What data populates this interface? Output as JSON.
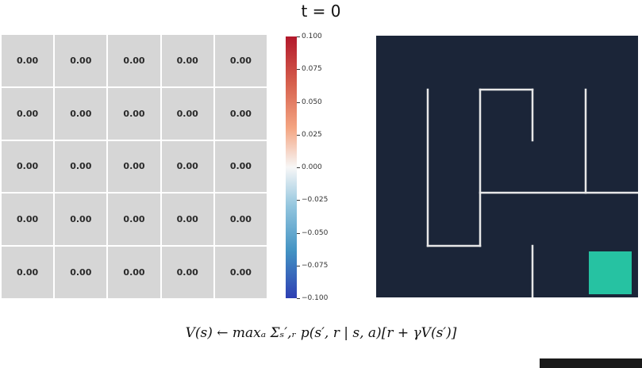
{
  "title": "t = 0",
  "grid": {
    "rows": [
      [
        "0.00",
        "0.00",
        "0.00",
        "0.00",
        "0.00"
      ],
      [
        "0.00",
        "0.00",
        "0.00",
        "0.00",
        "0.00"
      ],
      [
        "0.00",
        "0.00",
        "0.00",
        "0.00",
        "0.00"
      ],
      [
        "0.00",
        "0.00",
        "0.00",
        "0.00",
        "0.00"
      ],
      [
        "0.00",
        "0.00",
        "0.00",
        "0.00",
        "0.00"
      ]
    ]
  },
  "colorbar": {
    "ticks": [
      "0.100",
      "0.075",
      "0.050",
      "0.025",
      "0.000",
      "−0.025",
      "−0.050",
      "−0.075",
      "−0.100"
    ],
    "colors": {
      "max": "#b2182b",
      "mid": "#f7f7f7",
      "min": "#2e3fb3"
    }
  },
  "maze": {
    "background": "#1b2538",
    "wall_color": "#e8e8e8",
    "goal_color": "#26c2a2"
  },
  "formula": "V(s) ← maxₐ Σₛ′,ᵣ p(s′, r | s, a)[r + γV(s′)]"
}
